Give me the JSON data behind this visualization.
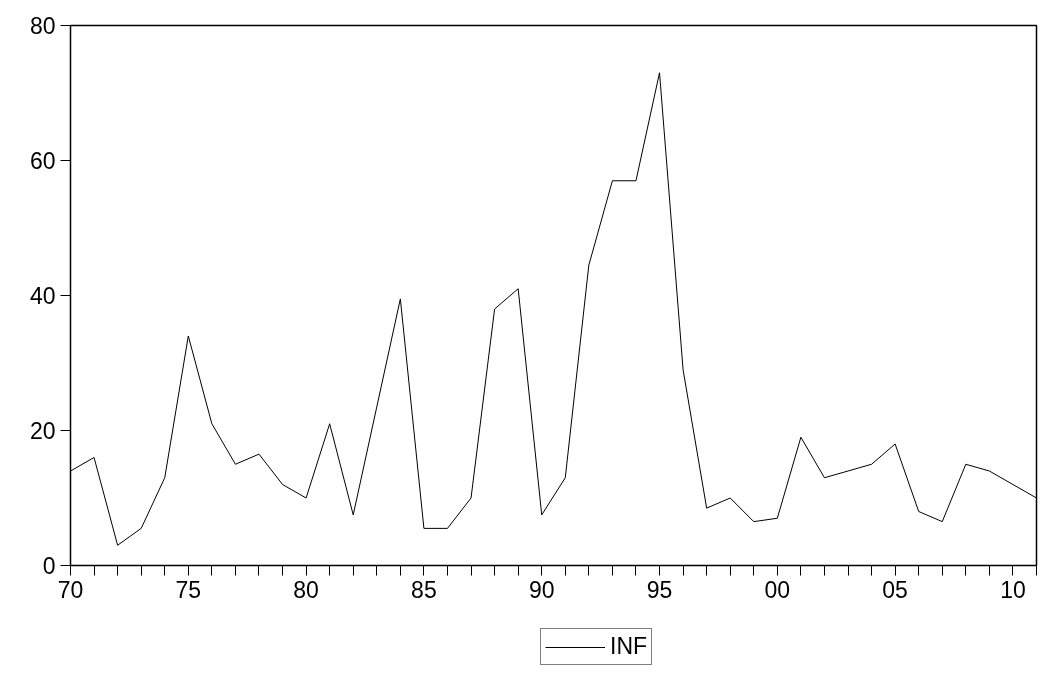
{
  "chart_data": {
    "type": "line",
    "x": [
      1970,
      1971,
      1972,
      1973,
      1974,
      1975,
      1976,
      1977,
      1978,
      1979,
      1980,
      1981,
      1982,
      1983,
      1984,
      1985,
      1986,
      1987,
      1988,
      1989,
      1990,
      1991,
      1992,
      1993,
      1994,
      1995,
      1996,
      1997,
      1998,
      1999,
      2000,
      2001,
      2002,
      2003,
      2004,
      2005,
      2006,
      2007,
      2008,
      2009,
      2010,
      2011
    ],
    "series": [
      {
        "name": "INF",
        "color": "#000000",
        "values": [
          14,
          16,
          3,
          5.5,
          13,
          34,
          21,
          15,
          16.5,
          12,
          10,
          21,
          7.5,
          23.5,
          39.5,
          5.5,
          5.5,
          10,
          38,
          41,
          7.5,
          13,
          44.5,
          57,
          57,
          73,
          29,
          8.5,
          10,
          6.5,
          7,
          19,
          13,
          14,
          15,
          18,
          8,
          6.5,
          15,
          14,
          12,
          10
        ]
      }
    ],
    "xlim": [
      1970,
      2011
    ],
    "ylim": [
      0,
      80
    ],
    "xticks": [
      {
        "value": 1970,
        "label": "70"
      },
      {
        "value": 1971,
        "label": null
      },
      {
        "value": 1972,
        "label": null
      },
      {
        "value": 1973,
        "label": null
      },
      {
        "value": 1974,
        "label": null
      },
      {
        "value": 1975,
        "label": "75"
      },
      {
        "value": 1976,
        "label": null
      },
      {
        "value": 1977,
        "label": null
      },
      {
        "value": 1978,
        "label": null
      },
      {
        "value": 1979,
        "label": null
      },
      {
        "value": 1980,
        "label": "80"
      },
      {
        "value": 1981,
        "label": null
      },
      {
        "value": 1982,
        "label": null
      },
      {
        "value": 1983,
        "label": null
      },
      {
        "value": 1984,
        "label": null
      },
      {
        "value": 1985,
        "label": "85"
      },
      {
        "value": 1986,
        "label": null
      },
      {
        "value": 1987,
        "label": null
      },
      {
        "value": 1988,
        "label": null
      },
      {
        "value": 1989,
        "label": null
      },
      {
        "value": 1990,
        "label": "90"
      },
      {
        "value": 1991,
        "label": null
      },
      {
        "value": 1992,
        "label": null
      },
      {
        "value": 1993,
        "label": null
      },
      {
        "value": 1994,
        "label": null
      },
      {
        "value": 1995,
        "label": "95"
      },
      {
        "value": 1996,
        "label": null
      },
      {
        "value": 1997,
        "label": null
      },
      {
        "value": 1998,
        "label": null
      },
      {
        "value": 1999,
        "label": null
      },
      {
        "value": 2000,
        "label": "00"
      },
      {
        "value": 2001,
        "label": null
      },
      {
        "value": 2002,
        "label": null
      },
      {
        "value": 2003,
        "label": null
      },
      {
        "value": 2004,
        "label": null
      },
      {
        "value": 2005,
        "label": "05"
      },
      {
        "value": 2006,
        "label": null
      },
      {
        "value": 2007,
        "label": null
      },
      {
        "value": 2008,
        "label": null
      },
      {
        "value": 2009,
        "label": null
      },
      {
        "value": 2010,
        "label": "10"
      },
      {
        "value": 2011,
        "label": null
      }
    ],
    "yticks": [
      0,
      20,
      40,
      60,
      80
    ],
    "grid": false,
    "legend": "bottom",
    "line_style": "solid"
  }
}
